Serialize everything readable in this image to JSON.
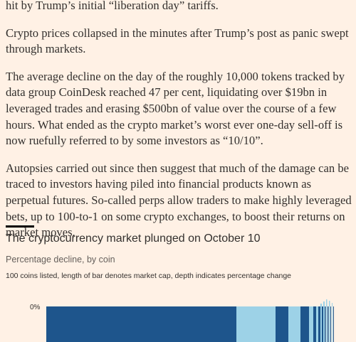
{
  "article": {
    "paragraphs": [
      "hit by Trump’s initial “liberation day” tariffs.",
      "Crypto prices collapsed in the minutes after Trump’s post as panic swept through markets.",
      "The average decline on the day of the roughly 10,000 tokens tracked by data group CoinDesk reached 47 per cent, liquidating over $19bn in leveraged trades and erasing $500bn of value over the course of a few hours. What ended as the crypto market’s worst ever one-day sell-off is now ruefully referred to by some investors as “10/10”.",
      "Autopsies carried out since then suggest that much of the damage can be traced to investors having piled into financial products known as perpetual futures. So-called perps allow traders to make highly leveraged bets, up to 100-to-1 on some crypto exchanges, to boost their returns on market moves."
    ]
  },
  "graphic": {
    "title": "The cryptocurrency market plunged on October 10",
    "subtitle": "Percentage decline, by coin",
    "note": "100 coins listed, length of bar denotes market cap, depth indicates percentage change",
    "axis_label": "0%"
  }
}
